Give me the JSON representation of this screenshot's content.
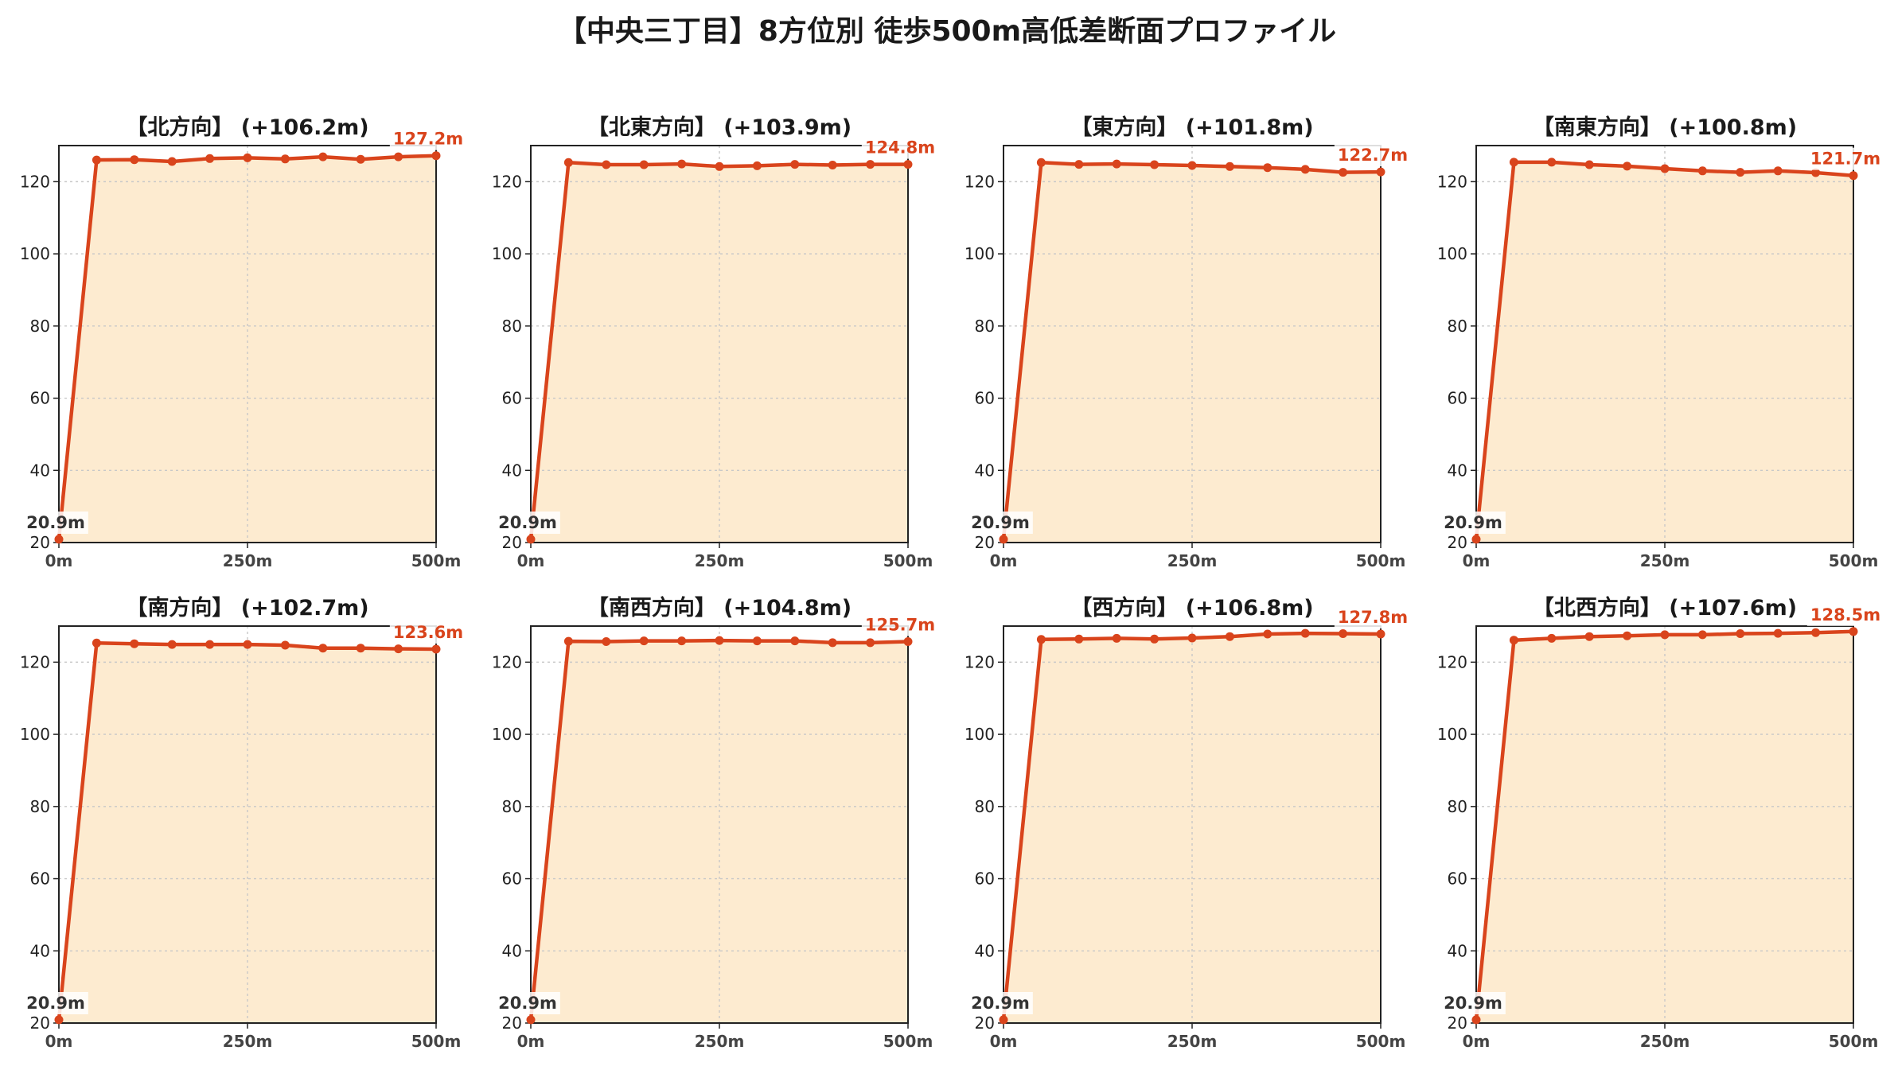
{
  "title": "【中央三丁目】8方位別 徒歩500m高低差断面プロファイル",
  "colors": {
    "line": "#d9441c",
    "fill": "#fdebd0",
    "grid": "#c8c8c8",
    "axis": "#222222",
    "start_label": "#333333",
    "end_label": "#d9441c"
  },
  "chart_data": [
    {
      "type": "area",
      "title": "【北方向】 (+106.2m)",
      "x": [
        0,
        50,
        100,
        150,
        200,
        250,
        300,
        350,
        400,
        450,
        500
      ],
      "values": [
        20.9,
        126.0,
        126.1,
        125.6,
        126.4,
        126.6,
        126.3,
        126.9,
        126.2,
        126.9,
        127.2
      ],
      "start_label": "20.9m",
      "end_label": "127.2m",
      "xticks": [
        "0m",
        "250m",
        "500m"
      ],
      "yticks": [
        20,
        40,
        60,
        80,
        100,
        120
      ],
      "xlim": [
        0,
        500
      ],
      "ylim": [
        20,
        130
      ],
      "grid": true
    },
    {
      "type": "area",
      "title": "【北東方向】 (+103.9m)",
      "x": [
        0,
        50,
        100,
        150,
        200,
        250,
        300,
        350,
        400,
        450,
        500
      ],
      "values": [
        20.9,
        125.3,
        124.7,
        124.7,
        124.9,
        124.2,
        124.4,
        124.8,
        124.6,
        124.8,
        124.8
      ],
      "start_label": "20.9m",
      "end_label": "124.8m",
      "xticks": [
        "0m",
        "250m",
        "500m"
      ],
      "yticks": [
        20,
        40,
        60,
        80,
        100,
        120
      ],
      "xlim": [
        0,
        500
      ],
      "ylim": [
        20,
        130
      ],
      "grid": true
    },
    {
      "type": "area",
      "title": "【東方向】 (+101.8m)",
      "x": [
        0,
        50,
        100,
        150,
        200,
        250,
        300,
        350,
        400,
        450,
        500
      ],
      "values": [
        20.9,
        125.3,
        124.8,
        124.9,
        124.7,
        124.5,
        124.2,
        123.9,
        123.4,
        122.6,
        122.7
      ],
      "start_label": "20.9m",
      "end_label": "122.7m",
      "xticks": [
        "0m",
        "250m",
        "500m"
      ],
      "yticks": [
        20,
        40,
        60,
        80,
        100,
        120
      ],
      "xlim": [
        0,
        500
      ],
      "ylim": [
        20,
        130
      ],
      "grid": true
    },
    {
      "type": "area",
      "title": "【南東方向】 (+100.8m)",
      "x": [
        0,
        50,
        100,
        150,
        200,
        250,
        300,
        350,
        400,
        450,
        500
      ],
      "values": [
        20.9,
        125.4,
        125.4,
        124.7,
        124.3,
        123.6,
        123.0,
        122.6,
        123.0,
        122.5,
        121.7
      ],
      "start_label": "20.9m",
      "end_label": "121.7m",
      "xticks": [
        "0m",
        "250m",
        "500m"
      ],
      "yticks": [
        20,
        40,
        60,
        80,
        100,
        120
      ],
      "xlim": [
        0,
        500
      ],
      "ylim": [
        20,
        130
      ],
      "grid": true
    },
    {
      "type": "area",
      "title": "【南方向】 (+102.7m)",
      "x": [
        0,
        50,
        100,
        150,
        200,
        250,
        300,
        350,
        400,
        450,
        500
      ],
      "values": [
        20.9,
        125.3,
        125.1,
        124.9,
        124.9,
        124.9,
        124.7,
        123.9,
        123.9,
        123.7,
        123.6
      ],
      "start_label": "20.9m",
      "end_label": "123.6m",
      "xticks": [
        "0m",
        "250m",
        "500m"
      ],
      "yticks": [
        20,
        40,
        60,
        80,
        100,
        120
      ],
      "xlim": [
        0,
        500
      ],
      "ylim": [
        20,
        130
      ],
      "grid": true
    },
    {
      "type": "area",
      "title": "【南西方向】 (+104.8m)",
      "x": [
        0,
        50,
        100,
        150,
        200,
        250,
        300,
        350,
        400,
        450,
        500
      ],
      "values": [
        20.9,
        125.8,
        125.7,
        125.9,
        125.9,
        126.0,
        125.9,
        125.9,
        125.4,
        125.4,
        125.7
      ],
      "start_label": "20.9m",
      "end_label": "125.7m",
      "xticks": [
        "0m",
        "250m",
        "500m"
      ],
      "yticks": [
        20,
        40,
        60,
        80,
        100,
        120
      ],
      "xlim": [
        0,
        500
      ],
      "ylim": [
        20,
        130
      ],
      "grid": true
    },
    {
      "type": "area",
      "title": "【西方向】 (+106.8m)",
      "x": [
        0,
        50,
        100,
        150,
        200,
        250,
        300,
        350,
        400,
        450,
        500
      ],
      "values": [
        20.9,
        126.3,
        126.4,
        126.6,
        126.4,
        126.7,
        127.1,
        127.8,
        128.0,
        127.9,
        127.8
      ],
      "start_label": "20.9m",
      "end_label": "127.8m",
      "xticks": [
        "0m",
        "250m",
        "500m"
      ],
      "yticks": [
        20,
        40,
        60,
        80,
        100,
        120
      ],
      "xlim": [
        0,
        500
      ],
      "ylim": [
        20,
        130
      ],
      "grid": true
    },
    {
      "type": "area",
      "title": "【北西方向】 (+107.6m)",
      "x": [
        0,
        50,
        100,
        150,
        200,
        250,
        300,
        350,
        400,
        450,
        500
      ],
      "values": [
        20.9,
        126.1,
        126.6,
        127.1,
        127.3,
        127.6,
        127.6,
        127.9,
        128.0,
        128.2,
        128.5
      ],
      "start_label": "20.9m",
      "end_label": "128.5m",
      "xticks": [
        "0m",
        "250m",
        "500m"
      ],
      "yticks": [
        20,
        40,
        60,
        80,
        100,
        120
      ],
      "xlim": [
        0,
        500
      ],
      "ylim": [
        20,
        130
      ],
      "grid": true
    }
  ]
}
